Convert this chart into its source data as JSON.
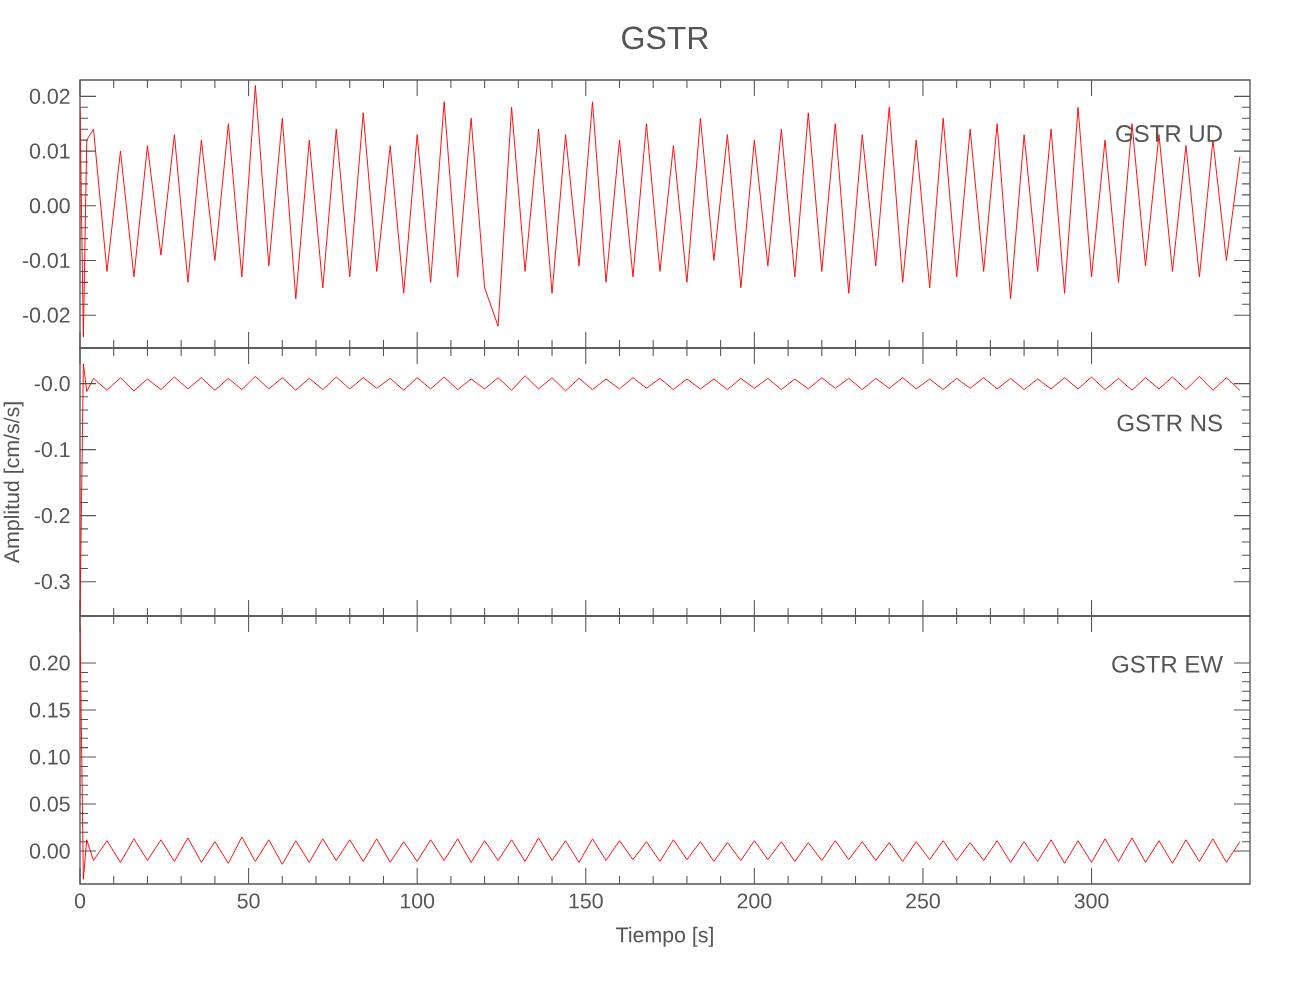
{
  "chart_data": [
    {
      "type": "line",
      "title": "GSTR",
      "annotations": [
        "GSTR   UD"
      ],
      "tick_labels": "y",
      "x": [
        0,
        1,
        2,
        4,
        8,
        12,
        16,
        20,
        24,
        28,
        32,
        36,
        40,
        44,
        48,
        52,
        56,
        60,
        64,
        68,
        72,
        76,
        80,
        84,
        88,
        92,
        96,
        100,
        104,
        108,
        112,
        116,
        120,
        124,
        128,
        132,
        136,
        140,
        144,
        148,
        152,
        156,
        160,
        164,
        168,
        172,
        176,
        180,
        184,
        188,
        192,
        196,
        200,
        204,
        208,
        212,
        216,
        220,
        224,
        228,
        232,
        236,
        240,
        244,
        248,
        252,
        256,
        260,
        264,
        268,
        272,
        276,
        280,
        284,
        288,
        292,
        296,
        300,
        304,
        308,
        312,
        316,
        320,
        324,
        328,
        332,
        336,
        340,
        344
      ],
      "series": [
        {
          "color": "#ff0000",
          "values": [
            0.018,
            -0.024,
            0.012,
            0.014,
            -0.012,
            0.01,
            -0.013,
            0.011,
            -0.009,
            0.013,
            -0.014,
            0.012,
            -0.01,
            0.015,
            -0.013,
            0.022,
            -0.011,
            0.016,
            -0.017,
            0.012,
            -0.015,
            0.014,
            -0.013,
            0.017,
            -0.012,
            0.011,
            -0.016,
            0.013,
            -0.014,
            0.019,
            -0.013,
            0.016,
            -0.015,
            -0.022,
            0.018,
            -0.012,
            0.014,
            -0.016,
            0.013,
            -0.011,
            0.019,
            -0.014,
            0.012,
            -0.013,
            0.015,
            -0.012,
            0.011,
            -0.014,
            0.016,
            -0.01,
            0.013,
            -0.015,
            0.012,
            -0.011,
            0.014,
            -0.013,
            0.017,
            -0.012,
            0.015,
            -0.016,
            0.013,
            -0.011,
            0.018,
            -0.014,
            0.012,
            -0.015,
            0.016,
            -0.013,
            0.014,
            -0.012,
            0.015,
            -0.017,
            0.013,
            -0.012,
            0.014,
            -0.016,
            0.018,
            -0.013,
            0.012,
            -0.014,
            0.015,
            -0.011,
            0.013,
            -0.012,
            0.011,
            -0.013,
            0.012,
            -0.01,
            0.009
          ]
        }
      ],
      "xlim": [
        0,
        347
      ],
      "xticks": [
        0,
        50,
        100,
        150,
        200,
        250,
        300
      ],
      "ylim": [
        -0.026,
        0.023
      ],
      "yticks": [
        {
          "value": -0.02,
          "label": "-0.02"
        },
        {
          "value": -0.01,
          "label": "-0.01"
        },
        {
          "value": 0,
          "label": "0.00"
        },
        0.01,
        0.02
      ]
    },
    {
      "type": "line",
      "ylabel": "Amplitud [cm/s/s]",
      "annotations": [
        "GSTR   NS"
      ],
      "tick_labels": "y",
      "x": [
        0,
        1,
        2,
        4,
        8,
        12,
        16,
        20,
        24,
        28,
        32,
        36,
        40,
        44,
        48,
        52,
        56,
        60,
        64,
        68,
        72,
        76,
        80,
        84,
        88,
        92,
        96,
        100,
        104,
        108,
        112,
        116,
        120,
        124,
        128,
        132,
        136,
        140,
        144,
        148,
        152,
        156,
        160,
        164,
        168,
        172,
        176,
        180,
        184,
        188,
        192,
        196,
        200,
        204,
        208,
        212,
        216,
        220,
        224,
        228,
        232,
        236,
        240,
        244,
        248,
        252,
        256,
        260,
        264,
        268,
        272,
        276,
        280,
        284,
        288,
        292,
        296,
        300,
        304,
        308,
        312,
        316,
        320,
        324,
        328,
        332,
        336,
        340,
        344
      ],
      "series": [
        {
          "color": "#ff0000",
          "values": [
            -0.35,
            0.03,
            -0.012,
            0.008,
            -0.01,
            0.009,
            -0.011,
            0.007,
            -0.009,
            0.01,
            -0.008,
            0.009,
            -0.01,
            0.008,
            -0.009,
            0.011,
            -0.008,
            0.009,
            -0.01,
            0.008,
            -0.009,
            0.01,
            -0.008,
            0.009,
            -0.007,
            0.008,
            -0.01,
            0.009,
            -0.008,
            0.01,
            -0.009,
            0.007,
            -0.008,
            0.009,
            -0.01,
            0.012,
            -0.008,
            0.009,
            -0.011,
            0.008,
            -0.009,
            0.007,
            -0.008,
            0.009,
            -0.007,
            0.008,
            -0.009,
            0.007,
            -0.008,
            0.007,
            -0.009,
            0.008,
            -0.007,
            0.008,
            -0.009,
            0.007,
            -0.008,
            0.009,
            -0.007,
            0.008,
            -0.009,
            0.008,
            -0.007,
            0.009,
            -0.008,
            0.007,
            -0.009,
            0.008,
            -0.007,
            0.009,
            -0.008,
            0.008,
            -0.009,
            0.007,
            -0.008,
            0.009,
            -0.008,
            0.01,
            -0.009,
            0.008,
            -0.01,
            0.009,
            -0.008,
            0.01,
            -0.009,
            0.011,
            -0.01,
            0.009,
            -0.01
          ]
        }
      ],
      "xlim": [
        0,
        347
      ],
      "xticks": [
        0,
        50,
        100,
        150,
        200,
        250,
        300
      ],
      "ylim": [
        -0.352,
        0.054
      ],
      "yticks": [
        -0.3,
        -0.2,
        -0.1,
        {
          "value": 0,
          "label": "-0.0"
        }
      ]
    },
    {
      "type": "line",
      "xlabel": "Tiempo [s]",
      "annotations": [
        "GSTR   EW"
      ],
      "x": [
        0,
        1,
        2,
        4,
        8,
        12,
        16,
        20,
        24,
        28,
        32,
        36,
        40,
        44,
        48,
        52,
        56,
        60,
        64,
        68,
        72,
        76,
        80,
        84,
        88,
        92,
        96,
        100,
        104,
        108,
        112,
        116,
        120,
        124,
        128,
        132,
        136,
        140,
        144,
        148,
        152,
        156,
        160,
        164,
        168,
        172,
        176,
        180,
        184,
        188,
        192,
        196,
        200,
        204,
        208,
        212,
        216,
        220,
        224,
        228,
        232,
        236,
        240,
        244,
        248,
        252,
        256,
        260,
        264,
        268,
        272,
        276,
        280,
        284,
        288,
        292,
        296,
        300,
        304,
        308,
        312,
        316,
        320,
        324,
        328,
        332,
        336,
        340,
        344
      ],
      "series": [
        {
          "color": "#ff0000",
          "values": [
            0.24,
            -0.03,
            0.012,
            -0.01,
            0.011,
            -0.012,
            0.013,
            -0.01,
            0.012,
            -0.011,
            0.014,
            -0.012,
            0.01,
            -0.013,
            0.015,
            -0.011,
            0.012,
            -0.014,
            0.011,
            -0.012,
            0.013,
            -0.01,
            0.012,
            -0.011,
            0.013,
            -0.012,
            0.01,
            -0.011,
            0.012,
            -0.01,
            0.013,
            -0.012,
            0.011,
            -0.01,
            0.012,
            -0.011,
            0.014,
            -0.01,
            0.011,
            -0.012,
            0.013,
            -0.01,
            0.011,
            -0.009,
            0.01,
            -0.011,
            0.012,
            -0.009,
            0.01,
            -0.011,
            0.009,
            -0.01,
            0.011,
            -0.009,
            0.01,
            -0.011,
            0.009,
            -0.01,
            0.011,
            -0.009,
            0.01,
            -0.01,
            0.009,
            -0.011,
            0.01,
            -0.009,
            0.011,
            -0.01,
            0.009,
            -0.01,
            0.011,
            -0.012,
            0.01,
            -0.011,
            0.012,
            -0.013,
            0.011,
            -0.012,
            0.013,
            -0.011,
            0.014,
            -0.012,
            0.011,
            -0.013,
            0.012,
            -0.011,
            0.013,
            -0.012,
            0.01
          ]
        }
      ],
      "xlim": [
        0,
        347
      ],
      "xticks": [
        0,
        50,
        100,
        150,
        200,
        250,
        300
      ],
      "ylim": [
        -0.035,
        0.25
      ],
      "yticks": [
        {
          "value": 0,
          "label": "0.00"
        },
        0.05,
        {
          "value": 0.1,
          "label": "0.10"
        },
        0.15,
        {
          "value": 0.2,
          "label": "0.20"
        }
      ]
    }
  ]
}
